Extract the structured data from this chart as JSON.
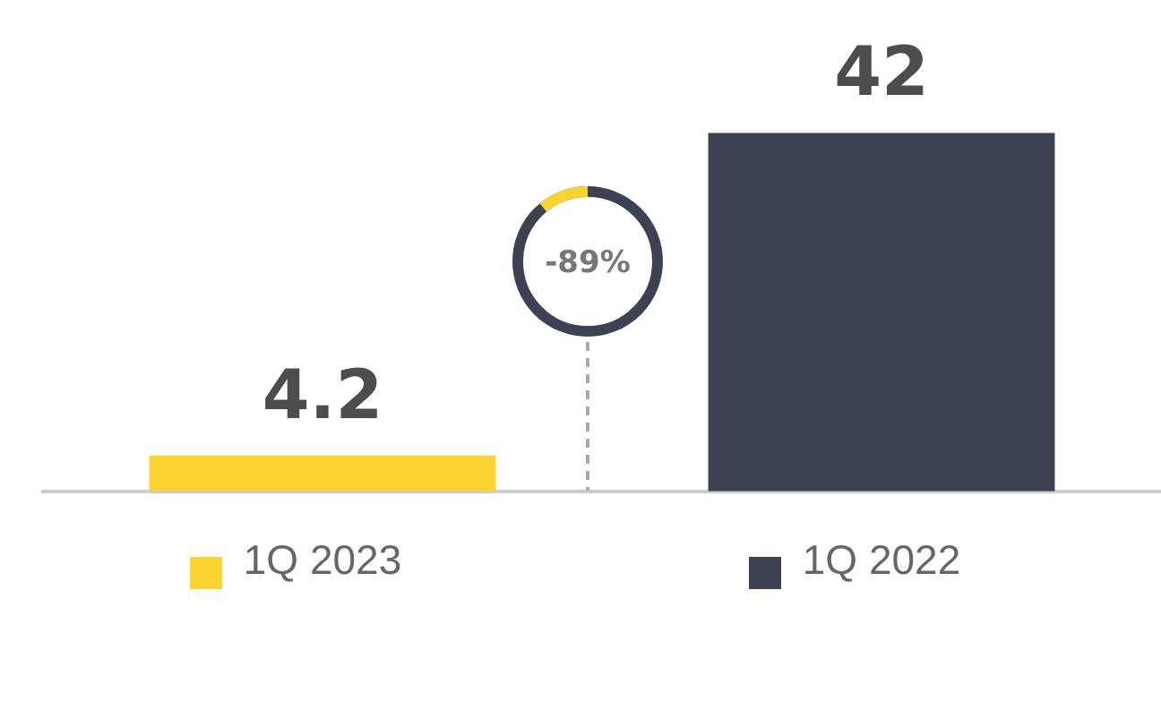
{
  "chart_data": {
    "type": "bar",
    "categories": [
      "1Q 2023",
      "1Q 2022"
    ],
    "values": [
      4.2,
      42
    ],
    "colors": [
      "#f9d332",
      "#3c4252"
    ],
    "data_labels": true,
    "grid": false,
    "tick_labels": "x",
    "annotations": [
      "-89%"
    ]
  }
}
